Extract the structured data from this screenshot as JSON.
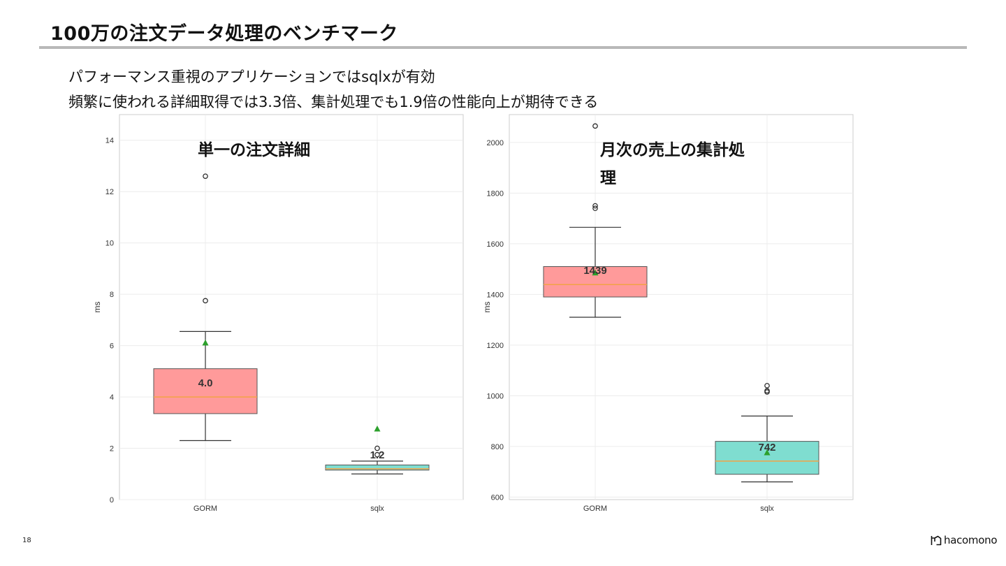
{
  "slide": {
    "title": "100万の注文データ処理のベンチマーク",
    "subtitle_line1": "パフォーマンス重視のアプリケーションではsqlxが有効",
    "subtitle_line2": "頻繁に使われる詳細取得では3.3倍、集計処理でも1.9倍の性能向上が期待できる",
    "page_number": "18",
    "logo_text": "hacomono"
  },
  "colors": {
    "gorm_box": "#ff9a9a",
    "sqlx_box": "#7fddd0",
    "median": "#f2a345",
    "mean_marker": "#2ca02c",
    "grid": "#ececec",
    "frame": "#cccccc",
    "title_rule": "#b8b8b8"
  },
  "chart_data": [
    {
      "type": "box",
      "title": "単一の注文詳細",
      "ylabel": "ms",
      "ylim": [
        0,
        15
      ],
      "yticks": [
        0,
        2,
        4,
        6,
        8,
        10,
        12,
        14
      ],
      "categories": [
        "GORM",
        "sqlx"
      ],
      "grid": true,
      "boxes": [
        {
          "name": "GORM",
          "whisker_low": 2.3,
          "q1": 3.35,
          "median": 4.0,
          "q3": 5.1,
          "whisker_high": 6.55,
          "mean": 6.1,
          "outliers": [
            7.75,
            12.6
          ],
          "label": "4.0",
          "color_key": "gorm_box"
        },
        {
          "name": "sqlx",
          "whisker_low": 1.0,
          "q1": 1.15,
          "median": 1.2,
          "q3": 1.35,
          "whisker_high": 1.5,
          "mean": 2.75,
          "outliers": [
            1.75,
            2.0
          ],
          "label": "1.2",
          "color_key": "sqlx_box"
        }
      ]
    },
    {
      "type": "box",
      "title": "月次の売上の集計処理",
      "ylabel": "ms",
      "ylim": [
        590,
        2110
      ],
      "yticks": [
        600,
        800,
        1000,
        1200,
        1400,
        1600,
        1800,
        2000
      ],
      "categories": [
        "GORM",
        "sqlx"
      ],
      "grid": true,
      "boxes": [
        {
          "name": "GORM",
          "whisker_low": 1310,
          "q1": 1390,
          "median": 1439,
          "q3": 1510,
          "whisker_high": 1665,
          "mean": 1485,
          "outliers": [
            1740,
            1750,
            2065
          ],
          "label": "1439",
          "color_key": "gorm_box"
        },
        {
          "name": "sqlx",
          "whisker_low": 660,
          "q1": 690,
          "median": 742,
          "q3": 820,
          "whisker_high": 920,
          "mean": 775,
          "outliers": [
            1015,
            1020,
            1040
          ],
          "label": "742",
          "color_key": "sqlx_box"
        }
      ]
    }
  ]
}
